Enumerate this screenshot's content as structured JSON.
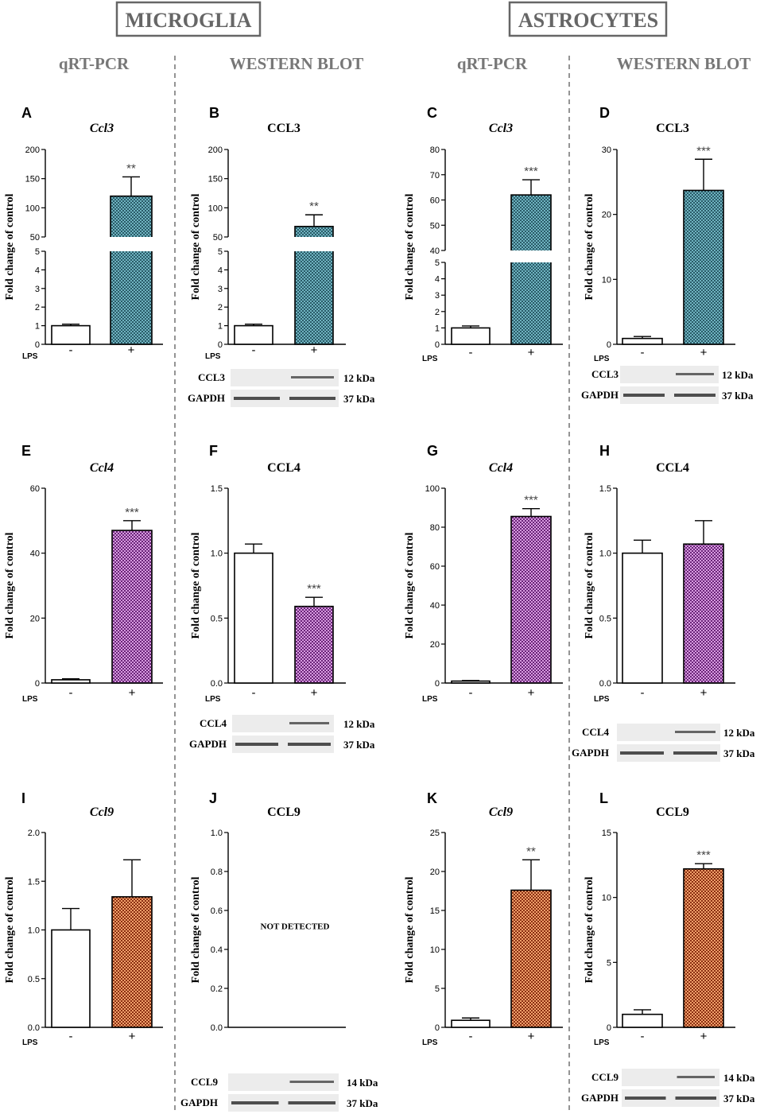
{
  "headers": {
    "microglia": "MICROGLIA",
    "astrocytes": "ASTROCYTES",
    "qrt": "qRT-PCR",
    "wb": "WESTERN BLOT"
  },
  "common": {
    "ylabel": "Fold change of control",
    "lps": "LPS",
    "minus": "-",
    "plus": "+"
  },
  "colors": {
    "ccl3": "#2a5b68",
    "ccl4": "#8c3a96",
    "ccl9": "#b24a24",
    "grid_gray": "#999999"
  },
  "chart_data": [
    {
      "panel": "A",
      "type": "bar",
      "title": "Ccl3",
      "italic": true,
      "categories": [
        "-",
        "+"
      ],
      "values": [
        1.0,
        120
      ],
      "errors": [
        0.08,
        33
      ],
      "sig": [
        "",
        "**"
      ],
      "broken": true,
      "lower_ticks": [
        "0",
        "1",
        "2",
        "3",
        "4",
        "5"
      ],
      "upper_ticks": [
        "50",
        "100",
        "150",
        "200"
      ],
      "color": "ccl3",
      "xlabel": "LPS",
      "ylabel": "Fold change of control"
    },
    {
      "panel": "B",
      "type": "bar",
      "title": "CCL3",
      "italic": false,
      "categories": [
        "-",
        "+"
      ],
      "values": [
        1.0,
        68
      ],
      "errors": [
        0.08,
        20
      ],
      "sig": [
        "",
        "**"
      ],
      "broken": true,
      "lower_ticks": [
        "0",
        "1",
        "2",
        "3",
        "4",
        "5"
      ],
      "upper_ticks": [
        "50",
        "100",
        "150",
        "200"
      ],
      "color": "ccl3",
      "xlabel": "LPS",
      "ylabel": "Fold change of control",
      "blot": [
        {
          "label": "CCL3",
          "kda": "12 kDa"
        },
        {
          "label": "GAPDH",
          "kda": "37 kDa"
        }
      ]
    },
    {
      "panel": "C",
      "type": "bar",
      "title": "Ccl3",
      "italic": true,
      "categories": [
        "-",
        "+"
      ],
      "values": [
        1.0,
        62
      ],
      "errors": [
        0.12,
        6
      ],
      "sig": [
        "",
        "***"
      ],
      "broken": true,
      "lower_ticks": [
        "0",
        "1",
        "2",
        "3",
        "4",
        "5"
      ],
      "upper_ticks": [
        "40",
        "50",
        "60",
        "70",
        "80"
      ],
      "color": "ccl3",
      "xlabel": "LPS",
      "ylabel": "Fold change of control"
    },
    {
      "panel": "D",
      "type": "bar",
      "title": "CCL3",
      "italic": false,
      "categories": [
        "-",
        "+"
      ],
      "values": [
        0.9,
        23.7
      ],
      "errors": [
        0.3,
        4.8
      ],
      "sig": [
        "",
        "***"
      ],
      "ylim": [
        0,
        30
      ],
      "ticks": [
        "0",
        "10",
        "20",
        "30"
      ],
      "color": "ccl3",
      "xlabel": "LPS",
      "ylabel": "Fold change of control",
      "blot": [
        {
          "label": "CCL3",
          "kda": "12 kDa"
        },
        {
          "label": "GAPDH",
          "kda": "37 kDa"
        }
      ]
    },
    {
      "panel": "E",
      "type": "bar",
      "title": "Ccl4",
      "italic": true,
      "categories": [
        "-",
        "+"
      ],
      "values": [
        1.0,
        47
      ],
      "errors": [
        0.3,
        3
      ],
      "sig": [
        "",
        "***"
      ],
      "ylim": [
        0,
        60
      ],
      "ticks": [
        "0",
        "20",
        "40",
        "60"
      ],
      "color": "ccl4",
      "xlabel": "LPS",
      "ylabel": "Fold change of control"
    },
    {
      "panel": "F",
      "type": "bar",
      "title": "CCL4",
      "italic": false,
      "categories": [
        "-",
        "+"
      ],
      "values": [
        1.0,
        0.59
      ],
      "errors": [
        0.07,
        0.07
      ],
      "sig": [
        "",
        "***"
      ],
      "ylim": [
        0,
        1.5
      ],
      "ticks": [
        "0.0",
        "0.5",
        "1.0",
        "1.5"
      ],
      "color": "ccl4",
      "xlabel": "LPS",
      "ylabel": "Fold change of control",
      "blot": [
        {
          "label": "CCL4",
          "kda": "12 kDa"
        },
        {
          "label": "GAPDH",
          "kda": "37 kDa"
        }
      ]
    },
    {
      "panel": "G",
      "type": "bar",
      "title": "Ccl4",
      "italic": true,
      "categories": [
        "-",
        "+"
      ],
      "values": [
        1.0,
        85.5
      ],
      "errors": [
        0.3,
        4
      ],
      "sig": [
        "",
        "***"
      ],
      "ylim": [
        0,
        100
      ],
      "ticks": [
        "0",
        "20",
        "40",
        "60",
        "80",
        "100"
      ],
      "color": "ccl4",
      "xlabel": "LPS",
      "ylabel": "Fold change of control"
    },
    {
      "panel": "H",
      "type": "bar",
      "title": "CCL4",
      "italic": false,
      "categories": [
        "-",
        "+"
      ],
      "values": [
        1.0,
        1.07
      ],
      "errors": [
        0.1,
        0.18
      ],
      "sig": [
        "",
        ""
      ],
      "ylim": [
        0,
        1.5
      ],
      "ticks": [
        "0.0",
        "0.5",
        "1.0",
        "1.5"
      ],
      "color": "ccl4",
      "xlabel": "LPS",
      "ylabel": "Fold change of control",
      "blot": [
        {
          "label": "CCL4",
          "kda": "12 kDa"
        },
        {
          "label": "GAPDH",
          "kda": "37 kDa"
        }
      ]
    },
    {
      "panel": "I",
      "type": "bar",
      "title": "Ccl9",
      "italic": true,
      "categories": [
        "-",
        "+"
      ],
      "values": [
        1.0,
        1.34
      ],
      "errors": [
        0.22,
        0.38
      ],
      "sig": [
        "",
        ""
      ],
      "ylim": [
        0,
        2.0
      ],
      "ticks": [
        "0.0",
        "0.5",
        "1.0",
        "1.5",
        "2.0"
      ],
      "color": "ccl9",
      "xlabel": "LPS",
      "ylabel": "Fold change of control"
    },
    {
      "panel": "J",
      "type": "bar",
      "title": "CCL9",
      "italic": false,
      "categories": [],
      "values": [],
      "errors": [],
      "sig": [],
      "ylim": [
        0,
        1.0
      ],
      "ticks": [
        "0.0",
        "0.2",
        "0.4",
        "0.6",
        "0.8",
        "1.0"
      ],
      "note": "NOT DETECTED",
      "color": "ccl9",
      "xlabel": "",
      "ylabel": "Fold change of control",
      "blot": [
        {
          "label": "CCL9",
          "kda": "14 kDa"
        },
        {
          "label": "GAPDH",
          "kda": "37 kDa"
        }
      ]
    },
    {
      "panel": "K",
      "type": "bar",
      "title": "Ccl9",
      "italic": true,
      "categories": [
        "-",
        "+"
      ],
      "values": [
        0.9,
        17.6
      ],
      "errors": [
        0.3,
        3.9
      ],
      "sig": [
        "",
        "**"
      ],
      "ylim": [
        0,
        25
      ],
      "ticks": [
        "0",
        "5",
        "10",
        "15",
        "20",
        "25"
      ],
      "color": "ccl9",
      "xlabel": "LPS",
      "ylabel": "Fold change of control"
    },
    {
      "panel": "L",
      "type": "bar",
      "title": "CCL9",
      "italic": false,
      "categories": [
        "-",
        "+"
      ],
      "values": [
        1.0,
        12.2
      ],
      "errors": [
        0.35,
        0.4
      ],
      "sig": [
        "",
        "***"
      ],
      "ylim": [
        0,
        15
      ],
      "ticks": [
        "0",
        "5",
        "10",
        "15"
      ],
      "color": "ccl9",
      "xlabel": "LPS",
      "ylabel": "Fold change of control",
      "blot": [
        {
          "label": "CCL9",
          "kda": "14 kDa"
        },
        {
          "label": "GAPDH",
          "kda": "37 kDa"
        }
      ]
    }
  ]
}
